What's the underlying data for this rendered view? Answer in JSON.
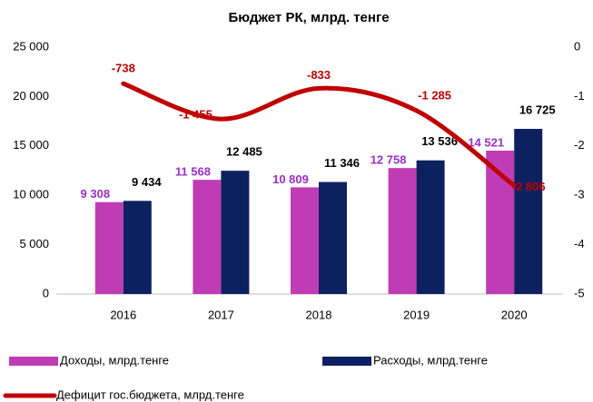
{
  "chart_data": {
    "type": "bar",
    "title": "Бюджет РК, млрд. тенге",
    "categories": [
      "2016",
      "2017",
      "2018",
      "2019",
      "2020"
    ],
    "series": [
      {
        "name": "Доходы, млрд.тенге",
        "color": "#c03cb4",
        "label_color": "#9b2fc6",
        "values": [
          9308,
          11568,
          10809,
          12758,
          14521
        ],
        "value_labels": [
          "9 308",
          "11 568",
          "10 809",
          "12 758",
          "14 521"
        ]
      },
      {
        "name": "Расходы, млрд.тенге",
        "color": "#0d2060",
        "label_color": "#000000",
        "values": [
          9434,
          12485,
          11346,
          13536,
          16725
        ],
        "value_labels": [
          "9 434",
          "12 485",
          "11 346",
          "13 536",
          "16 725"
        ]
      },
      {
        "name": "Дефицит гос.бюджета, млрд.тенге",
        "color": "#c00000",
        "axis": "y2",
        "values": [
          -0.738,
          -1.455,
          -0.833,
          -1.285,
          -2.806
        ],
        "value_labels": [
          "-738",
          "-1 455",
          "-833",
          "-1 285",
          "-2 806"
        ]
      }
    ],
    "ylim": [
      0,
      25000
    ],
    "yticks": [
      0,
      {
        "value": 5000,
        "label": "5 000"
      },
      {
        "value": 10000,
        "label": "10 000"
      },
      {
        "value": 15000,
        "label": "15 000"
      },
      {
        "value": 20000,
        "label": "20 000"
      },
      {
        "value": 25000,
        "label": "25 000"
      }
    ],
    "y2lim": [
      -5,
      0
    ],
    "y2ticks": [
      0,
      -1,
      -2,
      -3,
      -4,
      -5
    ],
    "grid": false
  }
}
